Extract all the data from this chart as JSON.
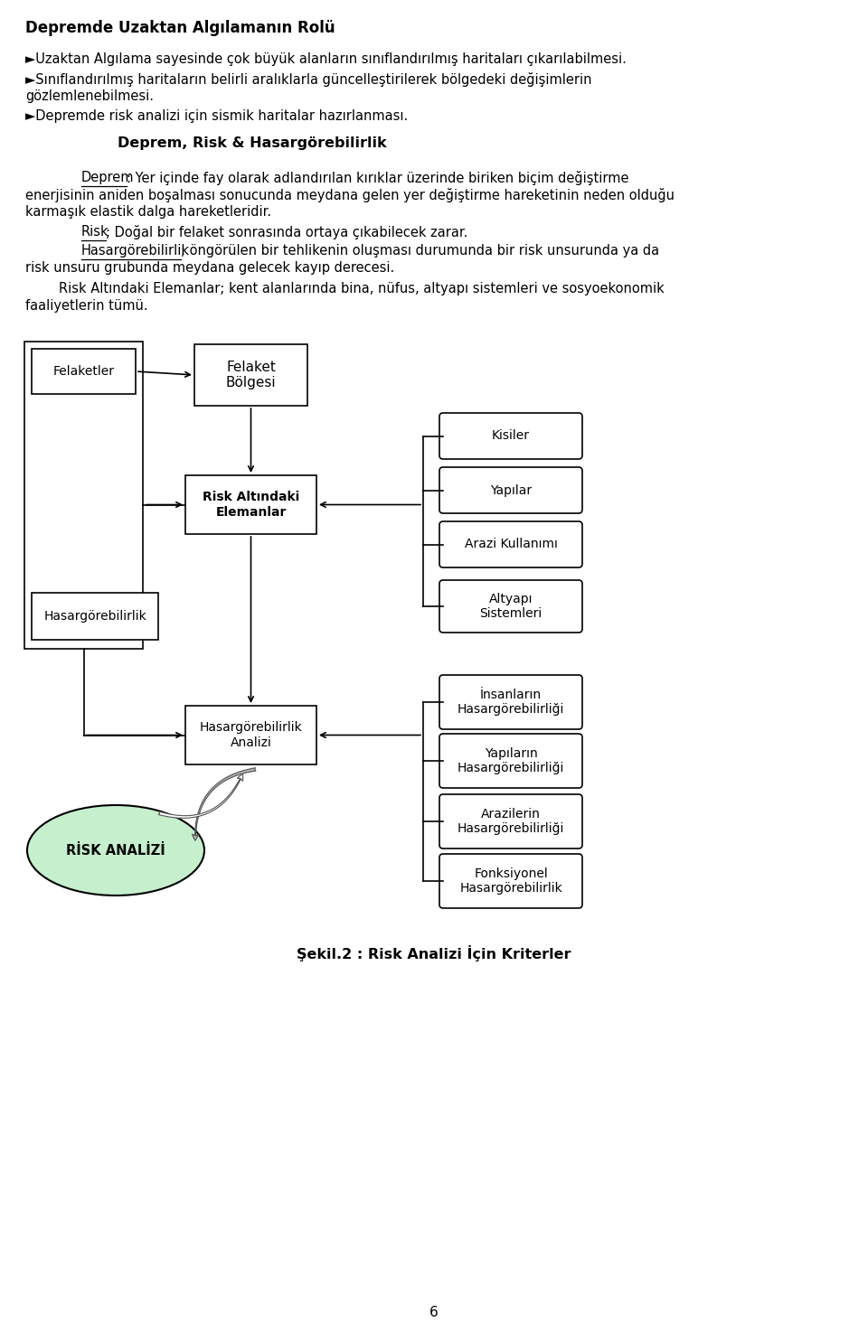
{
  "page_bg": "#ffffff",
  "title_top": "Depremde Uzaktan Algılamanın Rolü",
  "bullets": [
    "►Uzaktan Algılama sayesinde çok büyük alanların sınıflandırılmış haritaları çıkarılabilmesi.",
    "►Sınıflandırılmış haritaların belirli aralıklarla güncelleştirilerek bölgedeki değişimlerin\ngözlemlenebilmesi.",
    "►Depremde risk analizi için sismik haritalar hazırlanması."
  ],
  "section_title": "Deprem, Risk & Hasargörebilirlik",
  "para1_label": "Deprem",
  "para1_rest": ": Yer içinde fay olarak adlandırılan kırıklar üzerinde biriken biçim değiştirme",
  "para1_line2": "enerjisinin aniden boşalması sonucunda meydana gelen yer değiştirme hareketinin neden olduğu",
  "para1_line3": "karmaşık elastik dalga hareketleridir.",
  "para2_label": "Risk",
  "para2_rest": "; Doğal bir felaket sonrasında ortaya çıkabilecek zarar.",
  "para3_label": "Hasargörebilirlik",
  "para3_rest": "; öngörülen bir tehlikenin oluşması durumunda bir risk unsurunda ya da",
  "para3_line2": "risk unsuru grubunda meydana gelecek kayıp derecesi.",
  "para4_indent": "        Risk Altındaki Elemanlar; kent alanlarında bina, nüfus, altyapı sistemleri ve sosyoekonomik",
  "para4_line2": "faaliyetlerin tümü.",
  "caption": "Şekil.2 : Risk Analizi İçin Kriterler",
  "page_num": "6",
  "circle_fill": "#c6efce"
}
